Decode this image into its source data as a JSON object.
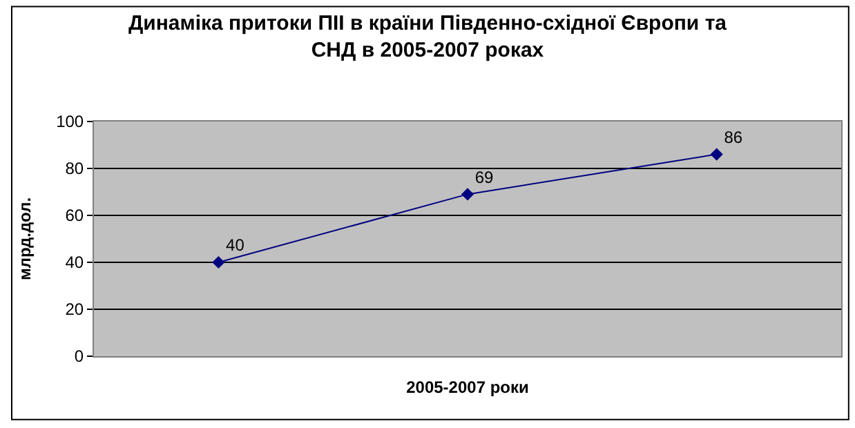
{
  "chart_data": {
    "type": "line",
    "title": "Динаміка притоки ПІІ в країни Південно-східної Європи та\nСНД в 2005-2007 роках",
    "xlabel": "2005-2007 роки",
    "ylabel": "млрд.дол.",
    "categories": [
      null,
      null,
      null
    ],
    "series": [
      {
        "color": "#000080",
        "values": [
          40,
          69,
          86
        ]
      }
    ],
    "ylim": [
      0,
      100
    ],
    "yticks": [
      0,
      20,
      40,
      60,
      80,
      100
    ],
    "grid": "y",
    "marker": "diamond",
    "line_style": "solid",
    "data_labels": true
  }
}
